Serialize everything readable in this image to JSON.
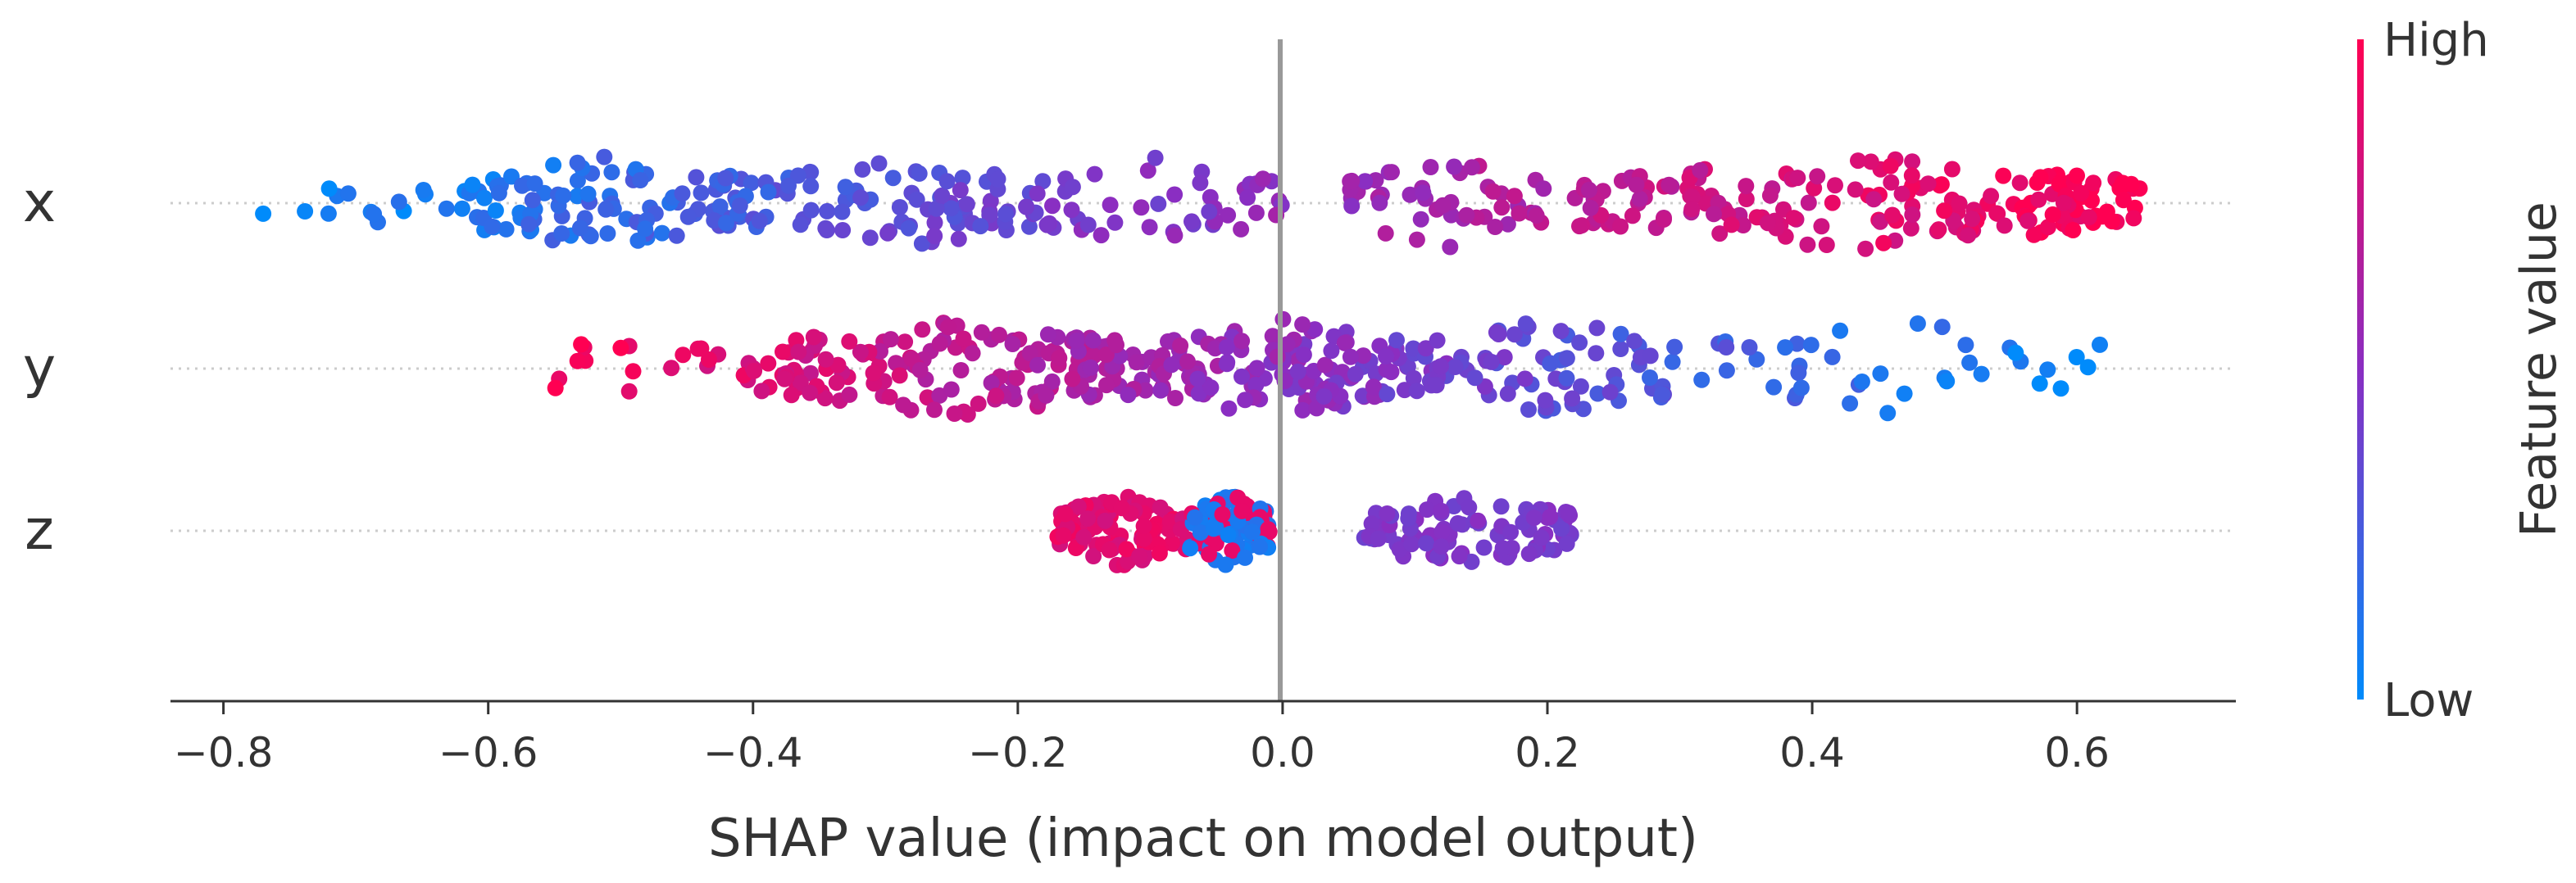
{
  "chart_data": {
    "type": "scatter",
    "subtype": "shap-beeswarm",
    "xlabel": "SHAP value (impact on model output)",
    "xlim": [
      -0.84,
      0.72
    ],
    "xticks": [
      "−0.8",
      "−0.6",
      "−0.4",
      "−0.2",
      "0.0",
      "0.2",
      "0.4",
      "0.6"
    ],
    "xtick_values": [
      -0.8,
      -0.6,
      -0.4,
      -0.2,
      0.0,
      0.2,
      0.4,
      0.6
    ],
    "features": [
      {
        "name": "x",
        "segments": [
          {
            "min": -0.77,
            "max": -0.62,
            "count": 14
          },
          {
            "min": -0.62,
            "max": -0.4,
            "count": 110
          },
          {
            "min": -0.4,
            "max": -0.18,
            "count": 85
          },
          {
            "min": -0.18,
            "max": 0.0,
            "count": 45
          },
          {
            "min": 0.05,
            "max": 0.2,
            "count": 50
          },
          {
            "min": 0.22,
            "max": 0.65,
            "count": 190
          }
        ],
        "color_trend": "low-to-high",
        "spread": 0.7
      },
      {
        "name": "y",
        "segments": [
          {
            "min": -0.58,
            "max": -0.4,
            "count": 20
          },
          {
            "min": -0.4,
            "max": -0.1,
            "count": 170
          },
          {
            "min": -0.1,
            "max": 0.1,
            "count": 140
          },
          {
            "min": 0.1,
            "max": 0.3,
            "count": 80
          },
          {
            "min": 0.3,
            "max": 0.62,
            "count": 40
          }
        ],
        "color_trend": "high-to-low",
        "spread": 0.75
      },
      {
        "name": "z",
        "segments": [
          {
            "min": -0.17,
            "max": -0.07,
            "count": 95
          },
          {
            "min": -0.07,
            "max": -0.01,
            "count": 85
          },
          {
            "min": 0.06,
            "max": 0.22,
            "count": 90
          }
        ],
        "color_trend": "clusters",
        "spread": 0.55
      }
    ],
    "colorbar": {
      "label": "Feature value",
      "high_label": "High",
      "low_label": "Low",
      "high_color": "#ff0052",
      "low_color": "#008bfb"
    },
    "zero_line_color": "#999999"
  }
}
